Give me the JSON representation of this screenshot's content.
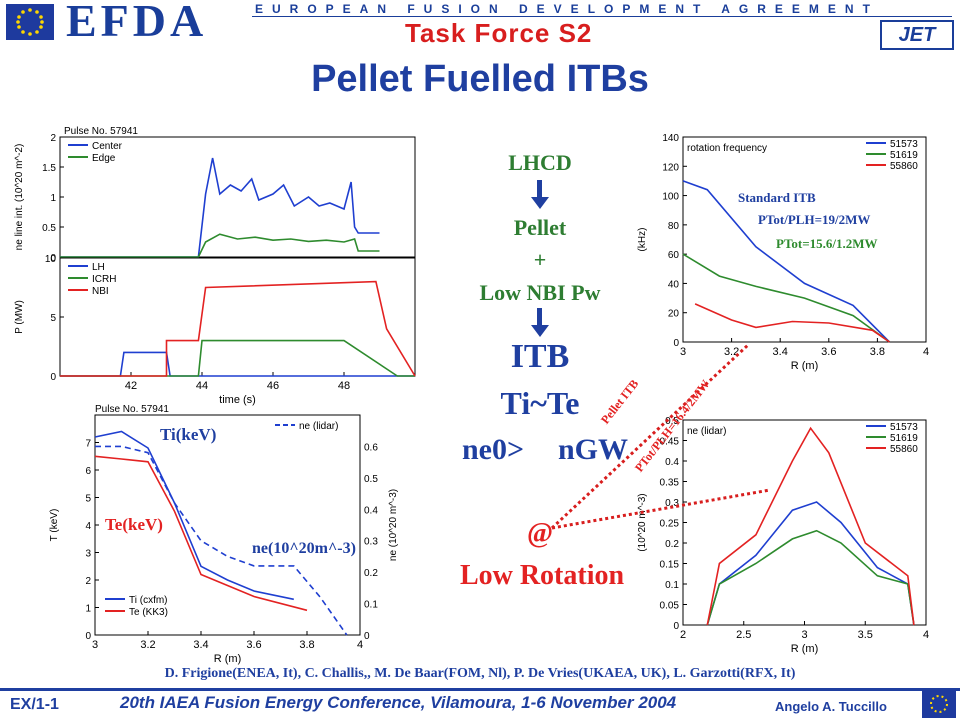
{
  "header": {
    "logo_text": "EFDA",
    "agreement": "EUROPEAN FUSION DEVELOPMENT AGREEMENT",
    "task_force": "Task Force S2",
    "jet_logo": "JET"
  },
  "title": "Pellet Fuelled ITBs",
  "flow": {
    "step1": "LHCD",
    "step2": "Pellet",
    "plus": "+",
    "step3": "Low NBI Pw",
    "result": "ITB",
    "ti_te": "Ti~Te",
    "density_left": "ne0>",
    "density_right": "nGW",
    "at": "@",
    "low_rotation": "Low Rotation"
  },
  "annotations": {
    "standard_itb": "Standard ITB",
    "ptot_plh_std": "PTot/PLH=19/2MW",
    "ptot_std": "PTot=15.6/1.2MW",
    "pellet_itb": "Pellet ITB",
    "ptot_plh_pellet": "PTot/PLH=16.4/2MW",
    "ti_kev": "Ti(keV)",
    "te_kev": "Te(keV)",
    "ne_label": "ne(10^20m^-3)"
  },
  "references": "D. Frigione(ENEA, It), C. Challis,, M. De Baar(FOM, Nl), P. De Vries(UKAEA, UK), L. Garzotti(RFX, It)",
  "footer": {
    "code": "EX/1-1",
    "conference": "20th IAEA Fusion Energy Conference, Vilamoura, 1-6 November 2004",
    "author": "Angelo A. Tuccillo"
  },
  "colors": {
    "title_blue": "#1f3fa0",
    "accent_red": "#e32222",
    "accent_green": "#2e7d32"
  },
  "chart_data": [
    {
      "type": "line",
      "title": "Pulse No. 57941",
      "ylabel": "ne line int. (10^20 m^-2)",
      "xlim": [
        40,
        50
      ],
      "ylim": [
        0,
        2
      ],
      "yticks": [
        "0",
        "0.5",
        "1",
        "1.5",
        "2"
      ],
      "series": [
        {
          "name": "Center",
          "color": "#1f3fd0",
          "x": [
            40,
            41.5,
            42,
            43,
            43.9,
            44.1,
            44.3,
            44.5,
            44.8,
            45.1,
            45.4,
            45.6,
            46,
            46.3,
            46.6,
            47,
            47.3,
            47.6,
            48,
            48.2,
            48.3,
            48.4,
            49
          ],
          "y": [
            0,
            0,
            0,
            0,
            0,
            1.05,
            1.65,
            1.05,
            1.2,
            1.1,
            1.3,
            0.95,
            1.05,
            1.2,
            0.85,
            1.0,
            0.85,
            0.9,
            0.8,
            1.25,
            0.5,
            0.4,
            0.4
          ]
        },
        {
          "name": "Edge",
          "color": "#2e8b2e",
          "x": [
            40,
            43.9,
            44.1,
            44.5,
            45,
            45.5,
            46,
            46.5,
            47,
            47.5,
            48,
            48.3,
            48.4,
            49
          ],
          "y": [
            0,
            0,
            0.25,
            0.38,
            0.3,
            0.33,
            0.28,
            0.3,
            0.26,
            0.28,
            0.25,
            0.3,
            0.1,
            0.1
          ]
        }
      ]
    },
    {
      "type": "line",
      "ylabel": "P (MW)",
      "xlabel": "time (s)",
      "xlim": [
        40,
        50
      ],
      "ylim": [
        0,
        10
      ],
      "xticks": [
        "42",
        "44",
        "46",
        "48"
      ],
      "yticks": [
        "0",
        "5",
        "10"
      ],
      "series": [
        {
          "name": "LH",
          "color": "#1f3fd0",
          "x": [
            40,
            41.7,
            41.8,
            43,
            43.1,
            50
          ],
          "y": [
            0,
            0,
            2,
            2,
            0,
            0
          ]
        },
        {
          "name": "ICRH",
          "color": "#2e8b2e",
          "x": [
            40,
            43.9,
            44,
            46,
            48,
            49.5,
            50
          ],
          "y": [
            0,
            0,
            3,
            3,
            3,
            0,
            0
          ]
        },
        {
          "name": "NBI",
          "color": "#e32222",
          "x": [
            40,
            43.0,
            43.0,
            43.9,
            44.1,
            48.9,
            49.2,
            50
          ],
          "y": [
            0,
            0,
            3,
            3,
            7.5,
            8,
            4,
            0
          ]
        }
      ]
    },
    {
      "type": "line",
      "title": "rotation frequency",
      "ylabel": "(kHz)",
      "xlabel": "R (m)",
      "xlim": [
        3,
        4
      ],
      "ylim": [
        0,
        140
      ],
      "xticks": [
        "3",
        "3.2",
        "3.4",
        "3.6",
        "3.8",
        "4"
      ],
      "yticks": [
        "0",
        "20",
        "40",
        "60",
        "80",
        "100",
        "120",
        "140"
      ],
      "series": [
        {
          "name": "51573",
          "color": "#1f3fd0",
          "x": [
            3.0,
            3.1,
            3.3,
            3.5,
            3.7,
            3.85
          ],
          "y": [
            110,
            104,
            65,
            40,
            25,
            0
          ]
        },
        {
          "name": "51619",
          "color": "#2e8b2e",
          "x": [
            3.0,
            3.15,
            3.3,
            3.5,
            3.7,
            3.85
          ],
          "y": [
            60,
            45,
            38,
            30,
            18,
            0
          ]
        },
        {
          "name": "55860",
          "color": "#e32222",
          "x": [
            3.05,
            3.2,
            3.3,
            3.45,
            3.6,
            3.78,
            3.85
          ],
          "y": [
            26,
            15,
            10,
            14,
            13,
            8,
            0
          ]
        }
      ]
    },
    {
      "type": "line",
      "title": "ne (lidar)",
      "ylabel": "(10^20 m^-3)",
      "xlabel": "R (m)",
      "xlim": [
        2,
        4
      ],
      "ylim": [
        0,
        0.5
      ],
      "xticks": [
        "2",
        "2.5",
        "3",
        "3.5",
        "4"
      ],
      "yticks": [
        "0",
        "0.05",
        "0.1",
        "0.15",
        "0.2",
        "0.25",
        "0.3",
        "0.35",
        "0.4",
        "0.45",
        "0.5"
      ],
      "series": [
        {
          "name": "51573",
          "color": "#1f3fd0",
          "x": [
            2.2,
            2.3,
            2.6,
            2.9,
            3.1,
            3.3,
            3.6,
            3.85,
            3.9
          ],
          "y": [
            0,
            0.1,
            0.17,
            0.28,
            0.3,
            0.25,
            0.14,
            0.1,
            0
          ]
        },
        {
          "name": "51619",
          "color": "#2e8b2e",
          "x": [
            2.2,
            2.3,
            2.6,
            2.9,
            3.1,
            3.3,
            3.6,
            3.85,
            3.9
          ],
          "y": [
            0,
            0.1,
            0.15,
            0.21,
            0.23,
            0.2,
            0.12,
            0.1,
            0
          ]
        },
        {
          "name": "55860",
          "color": "#e32222",
          "x": [
            2.2,
            2.3,
            2.6,
            2.9,
            3.05,
            3.2,
            3.5,
            3.85,
            3.9
          ],
          "y": [
            0,
            0.15,
            0.22,
            0.4,
            0.48,
            0.42,
            0.2,
            0.12,
            0
          ]
        }
      ]
    },
    {
      "type": "line",
      "title": "Pulse No. 57941",
      "ylabel": "T (keV)",
      "y2label": "ne (10^20 m^-3)",
      "xlabel": "R (m)",
      "xlim": [
        3,
        4
      ],
      "ylim": [
        0,
        8
      ],
      "y2lim": [
        0,
        0.7
      ],
      "xticks": [
        "3",
        "3.2",
        "3.4",
        "3.6",
        "3.8",
        "4"
      ],
      "yticks": [
        "0",
        "1",
        "2",
        "3",
        "4",
        "5",
        "6",
        "7"
      ],
      "y2ticks": [
        "0",
        "0.1",
        "0.2",
        "0.3",
        "0.4",
        "0.5",
        "0.6"
      ],
      "series": [
        {
          "name": "Ti (cxfm)",
          "color": "#1f3fd0",
          "x": [
            3.0,
            3.1,
            3.2,
            3.3,
            3.4,
            3.5,
            3.6,
            3.75
          ],
          "y": [
            7.2,
            7.4,
            6.8,
            4.8,
            2.5,
            2.0,
            1.6,
            1.3
          ]
        },
        {
          "name": "Te (KK3)",
          "color": "#e32222",
          "x": [
            3.0,
            3.1,
            3.2,
            3.3,
            3.4,
            3.5,
            3.6,
            3.8
          ],
          "y": [
            6.5,
            6.4,
            6.3,
            4.5,
            2.2,
            1.8,
            1.4,
            0.9
          ]
        },
        {
          "name": "ne (lidar)",
          "color": "#1f3fd0",
          "dashed": true,
          "x": [
            3.0,
            3.1,
            3.2,
            3.3,
            3.4,
            3.5,
            3.6,
            3.75,
            3.85,
            3.95
          ],
          "y": [
            0.6,
            0.6,
            0.58,
            0.42,
            0.3,
            0.25,
            0.22,
            0.22,
            0.12,
            0.0
          ]
        }
      ]
    }
  ]
}
